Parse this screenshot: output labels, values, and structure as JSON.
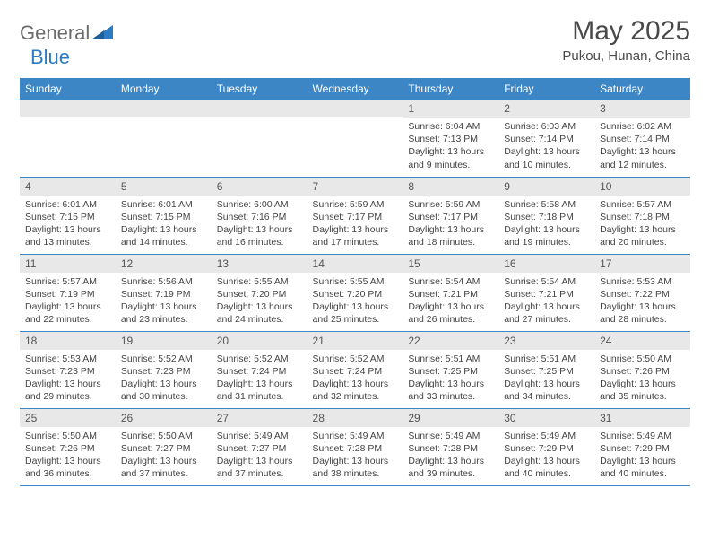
{
  "brand": {
    "word1": "General",
    "word2": "Blue"
  },
  "title": "May 2025",
  "location": "Pukou, Hunan, China",
  "colors": {
    "header_bg": "#3d86c6",
    "header_text": "#ffffff",
    "daynum_bg": "#e8e8e8",
    "text": "#444444",
    "logo_gray": "#6b6b6b",
    "logo_blue": "#2f7bc1",
    "row_border": "#3d86c6"
  },
  "font": {
    "family": "Arial",
    "day_header_size": 12,
    "body_size": 10.5,
    "title_size": 30,
    "location_size": 15
  },
  "weekdays": [
    "Sunday",
    "Monday",
    "Tuesday",
    "Wednesday",
    "Thursday",
    "Friday",
    "Saturday"
  ],
  "weeks": [
    [
      {
        "day": "",
        "sunrise": "",
        "sunset": "",
        "daylight": ""
      },
      {
        "day": "",
        "sunrise": "",
        "sunset": "",
        "daylight": ""
      },
      {
        "day": "",
        "sunrise": "",
        "sunset": "",
        "daylight": ""
      },
      {
        "day": "",
        "sunrise": "",
        "sunset": "",
        "daylight": ""
      },
      {
        "day": "1",
        "sunrise": "Sunrise: 6:04 AM",
        "sunset": "Sunset: 7:13 PM",
        "daylight": "Daylight: 13 hours and 9 minutes."
      },
      {
        "day": "2",
        "sunrise": "Sunrise: 6:03 AM",
        "sunset": "Sunset: 7:14 PM",
        "daylight": "Daylight: 13 hours and 10 minutes."
      },
      {
        "day": "3",
        "sunrise": "Sunrise: 6:02 AM",
        "sunset": "Sunset: 7:14 PM",
        "daylight": "Daylight: 13 hours and 12 minutes."
      }
    ],
    [
      {
        "day": "4",
        "sunrise": "Sunrise: 6:01 AM",
        "sunset": "Sunset: 7:15 PM",
        "daylight": "Daylight: 13 hours and 13 minutes."
      },
      {
        "day": "5",
        "sunrise": "Sunrise: 6:01 AM",
        "sunset": "Sunset: 7:15 PM",
        "daylight": "Daylight: 13 hours and 14 minutes."
      },
      {
        "day": "6",
        "sunrise": "Sunrise: 6:00 AM",
        "sunset": "Sunset: 7:16 PM",
        "daylight": "Daylight: 13 hours and 16 minutes."
      },
      {
        "day": "7",
        "sunrise": "Sunrise: 5:59 AM",
        "sunset": "Sunset: 7:17 PM",
        "daylight": "Daylight: 13 hours and 17 minutes."
      },
      {
        "day": "8",
        "sunrise": "Sunrise: 5:59 AM",
        "sunset": "Sunset: 7:17 PM",
        "daylight": "Daylight: 13 hours and 18 minutes."
      },
      {
        "day": "9",
        "sunrise": "Sunrise: 5:58 AM",
        "sunset": "Sunset: 7:18 PM",
        "daylight": "Daylight: 13 hours and 19 minutes."
      },
      {
        "day": "10",
        "sunrise": "Sunrise: 5:57 AM",
        "sunset": "Sunset: 7:18 PM",
        "daylight": "Daylight: 13 hours and 20 minutes."
      }
    ],
    [
      {
        "day": "11",
        "sunrise": "Sunrise: 5:57 AM",
        "sunset": "Sunset: 7:19 PM",
        "daylight": "Daylight: 13 hours and 22 minutes."
      },
      {
        "day": "12",
        "sunrise": "Sunrise: 5:56 AM",
        "sunset": "Sunset: 7:19 PM",
        "daylight": "Daylight: 13 hours and 23 minutes."
      },
      {
        "day": "13",
        "sunrise": "Sunrise: 5:55 AM",
        "sunset": "Sunset: 7:20 PM",
        "daylight": "Daylight: 13 hours and 24 minutes."
      },
      {
        "day": "14",
        "sunrise": "Sunrise: 5:55 AM",
        "sunset": "Sunset: 7:20 PM",
        "daylight": "Daylight: 13 hours and 25 minutes."
      },
      {
        "day": "15",
        "sunrise": "Sunrise: 5:54 AM",
        "sunset": "Sunset: 7:21 PM",
        "daylight": "Daylight: 13 hours and 26 minutes."
      },
      {
        "day": "16",
        "sunrise": "Sunrise: 5:54 AM",
        "sunset": "Sunset: 7:21 PM",
        "daylight": "Daylight: 13 hours and 27 minutes."
      },
      {
        "day": "17",
        "sunrise": "Sunrise: 5:53 AM",
        "sunset": "Sunset: 7:22 PM",
        "daylight": "Daylight: 13 hours and 28 minutes."
      }
    ],
    [
      {
        "day": "18",
        "sunrise": "Sunrise: 5:53 AM",
        "sunset": "Sunset: 7:23 PM",
        "daylight": "Daylight: 13 hours and 29 minutes."
      },
      {
        "day": "19",
        "sunrise": "Sunrise: 5:52 AM",
        "sunset": "Sunset: 7:23 PM",
        "daylight": "Daylight: 13 hours and 30 minutes."
      },
      {
        "day": "20",
        "sunrise": "Sunrise: 5:52 AM",
        "sunset": "Sunset: 7:24 PM",
        "daylight": "Daylight: 13 hours and 31 minutes."
      },
      {
        "day": "21",
        "sunrise": "Sunrise: 5:52 AM",
        "sunset": "Sunset: 7:24 PM",
        "daylight": "Daylight: 13 hours and 32 minutes."
      },
      {
        "day": "22",
        "sunrise": "Sunrise: 5:51 AM",
        "sunset": "Sunset: 7:25 PM",
        "daylight": "Daylight: 13 hours and 33 minutes."
      },
      {
        "day": "23",
        "sunrise": "Sunrise: 5:51 AM",
        "sunset": "Sunset: 7:25 PM",
        "daylight": "Daylight: 13 hours and 34 minutes."
      },
      {
        "day": "24",
        "sunrise": "Sunrise: 5:50 AM",
        "sunset": "Sunset: 7:26 PM",
        "daylight": "Daylight: 13 hours and 35 minutes."
      }
    ],
    [
      {
        "day": "25",
        "sunrise": "Sunrise: 5:50 AM",
        "sunset": "Sunset: 7:26 PM",
        "daylight": "Daylight: 13 hours and 36 minutes."
      },
      {
        "day": "26",
        "sunrise": "Sunrise: 5:50 AM",
        "sunset": "Sunset: 7:27 PM",
        "daylight": "Daylight: 13 hours and 37 minutes."
      },
      {
        "day": "27",
        "sunrise": "Sunrise: 5:49 AM",
        "sunset": "Sunset: 7:27 PM",
        "daylight": "Daylight: 13 hours and 37 minutes."
      },
      {
        "day": "28",
        "sunrise": "Sunrise: 5:49 AM",
        "sunset": "Sunset: 7:28 PM",
        "daylight": "Daylight: 13 hours and 38 minutes."
      },
      {
        "day": "29",
        "sunrise": "Sunrise: 5:49 AM",
        "sunset": "Sunset: 7:28 PM",
        "daylight": "Daylight: 13 hours and 39 minutes."
      },
      {
        "day": "30",
        "sunrise": "Sunrise: 5:49 AM",
        "sunset": "Sunset: 7:29 PM",
        "daylight": "Daylight: 13 hours and 40 minutes."
      },
      {
        "day": "31",
        "sunrise": "Sunrise: 5:49 AM",
        "sunset": "Sunset: 7:29 PM",
        "daylight": "Daylight: 13 hours and 40 minutes."
      }
    ]
  ]
}
